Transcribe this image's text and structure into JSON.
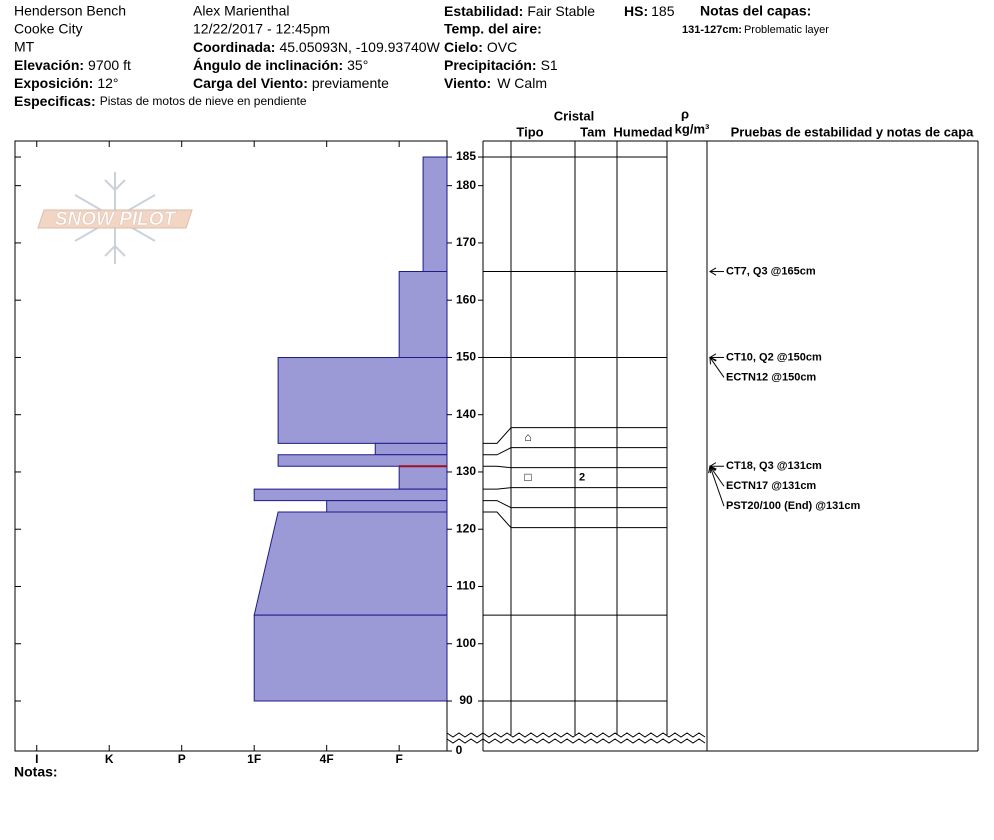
{
  "header": {
    "site": "Henderson Bench",
    "location": "Cooke City",
    "state": "MT",
    "elevation": {
      "label": "Elevación:",
      "value": "9700 ft"
    },
    "aspect": {
      "label": "Exposición:",
      "value": "12°"
    },
    "specifics": {
      "label": "Especificas:",
      "value": "Pistas de motos de nieve en pendiente"
    },
    "observer": "Alex Marienthal",
    "datetime": "12/22/2017 - 12:45pm",
    "coordinates": {
      "label": "Coordinada:",
      "value": "45.05093N, -109.93740W"
    },
    "slope_angle": {
      "label": "Ángulo de inclinación:",
      "value": "35°"
    },
    "wind_loading": {
      "label": "Carga del Viento:",
      "value": "previamente"
    },
    "stability": {
      "label": "Estabilidad:",
      "value": "Fair Stable"
    },
    "hs": {
      "label": "HS:",
      "value": "185"
    },
    "air_temp": {
      "label": "Temp. del aire:"
    },
    "sky": {
      "label": "Cielo:",
      "value": "OVC"
    },
    "precipitation": {
      "label": "Precipitación:",
      "value": "S1"
    },
    "wind": {
      "label": "Viento:",
      "value": "W Calm"
    },
    "layer_notes_title": "Notas del capas:",
    "layer_notes": [
      {
        "label": "131-127cm:",
        "text": "Problematic layer",
        "top": 131
      }
    ]
  },
  "notes_label": "Notas:",
  "logo": "SNOW PILOT",
  "table_headers": {
    "crystal": "Cristal",
    "type": "Tipo",
    "size": "Tam",
    "moisture": "Humedad",
    "density_symbol": "ρ",
    "density_unit": "kg/m³",
    "tests": "Pruebas de estabilidad y notas de capa"
  },
  "chart_data": {
    "type": "snow_profile",
    "ylim": [
      90,
      187.8
    ],
    "yticks": [
      90,
      100,
      110,
      120,
      130,
      140,
      150,
      160,
      170,
      180,
      185
    ],
    "ground_tick": 0,
    "xlim": [
      6.3,
      0.34
    ],
    "xticks": [
      {
        "value": 6,
        "label": "I"
      },
      {
        "value": 5,
        "label": "K"
      },
      {
        "value": 4,
        "label": "P"
      },
      {
        "value": 3,
        "label": "1F"
      },
      {
        "value": 2,
        "label": "4F"
      },
      {
        "value": 1,
        "label": "F"
      }
    ],
    "color": "#9b99d6",
    "edge": "#1c1c8a",
    "note_color": "#a01020",
    "layers": [
      {
        "top": 185,
        "bottom": 165,
        "hardness": 0.67
      },
      {
        "top": 165,
        "bottom": 150,
        "hardness": 1
      },
      {
        "top": 150,
        "bottom": 135,
        "hardness": 2.67
      },
      {
        "top": 135,
        "bottom": 133,
        "hardness": 1.33,
        "grain": "⌂"
      },
      {
        "top": 133,
        "bottom": 131,
        "hardness": 2.67
      },
      {
        "top": 131,
        "bottom": 127,
        "hardness": 1,
        "grain": "□",
        "size": 2
      },
      {
        "top": 127,
        "bottom": 125,
        "hardness": 3
      },
      {
        "top": 125,
        "bottom": 123,
        "hardness": 2
      },
      {
        "top": 123,
        "bottom": 105,
        "hardness": 2.67,
        "hardness_bottom": 3
      },
      {
        "top": 105,
        "bottom": 90,
        "hardness": 3
      }
    ],
    "tests": [
      {
        "label": "CT7, Q3 @165cm",
        "height": 165
      },
      {
        "label": "CT10, Q2 @150cm",
        "height": 150
      },
      {
        "label": "ECTN12 @150cm",
        "height": 150
      },
      {
        "label": "CT18, Q3 @131cm",
        "height": 131
      },
      {
        "label": "ECTN17 @131cm",
        "height": 131
      },
      {
        "label": "PST20/100 (End) @131cm",
        "height": 131
      }
    ]
  }
}
